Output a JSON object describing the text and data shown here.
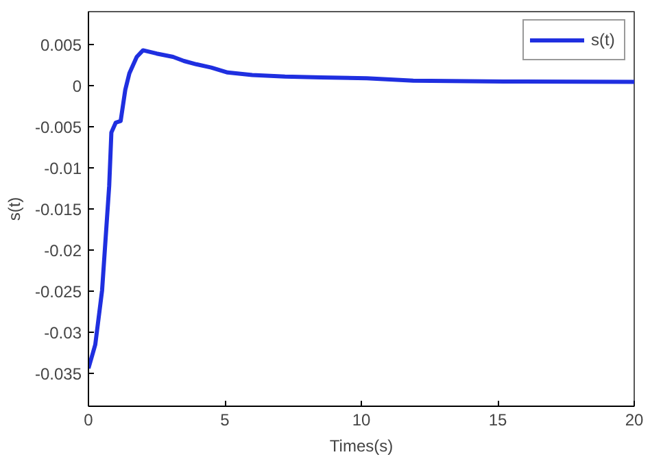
{
  "chart_data": {
    "type": "line",
    "xlabel": "Times(s)",
    "ylabel": "s(t)",
    "x": [
      0,
      0.25,
      0.5,
      0.76,
      0.84,
      1.0,
      1.18,
      1.35,
      1.5,
      1.77,
      2.0,
      2.5,
      3.1,
      3.5,
      3.95,
      4.5,
      5.1,
      6,
      7.2,
      8.5,
      10.2,
      11.9,
      15.2,
      20
    ],
    "series": [
      {
        "name": "s(t)",
        "color": "#1f2fe0",
        "values": [
          -0.0344,
          -0.0315,
          -0.0249,
          -0.0122,
          -0.0057,
          -0.0045,
          -0.0043,
          -0.0005,
          0.0015,
          0.0035,
          0.0043,
          0.0039,
          0.0035,
          0.003,
          0.0026,
          0.0022,
          0.0016,
          0.0013,
          0.0011,
          0.001,
          0.0009,
          0.0006,
          0.0005,
          0.00045
        ]
      }
    ],
    "xlim": [
      0,
      20
    ],
    "xticks": [
      0,
      5,
      10,
      15,
      20
    ],
    "ylim": [
      -0.039,
      0.009
    ],
    "yticks": [
      -0.035,
      -0.03,
      -0.025,
      -0.02,
      -0.015,
      -0.01,
      -0.005,
      0,
      0.005
    ],
    "grid": false,
    "legend": "top right",
    "line_style": "solid"
  }
}
